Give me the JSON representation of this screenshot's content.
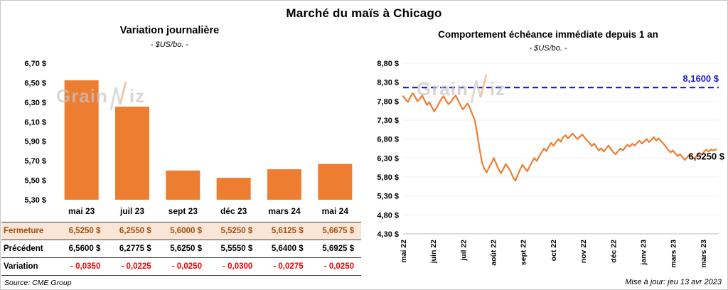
{
  "title": "Marché du maïs à Chicago",
  "left_panel": {
    "title": "Variation journalière",
    "subtitle": "- $US/bo. -",
    "source": "Source: CME Group"
  },
  "right_panel": {
    "title": "Comportement échéance immédiate depuis 1 an",
    "subtitle": "- $US/bo. -",
    "updated": "Mise à jour: jeu 13 avr 2023"
  },
  "watermark": {
    "text": "GrainWiz",
    "part1": "Grain",
    "part2": "iz"
  },
  "colors": {
    "accent_orange": "#ED7D31",
    "table_highlight_bg": "#FBE5D6",
    "table_highlight_text": "#9E4F0D",
    "negative_red": "#F00000",
    "reference_blue": "#2020CC"
  },
  "table": {
    "rows": [
      {
        "key": "fermeture",
        "label": "Fermeture",
        "values": [
          "6,5250 $",
          "6,2550 $",
          "5,6000 $",
          "5,5250 $",
          "5,6125 $",
          "5,6675 $"
        ]
      },
      {
        "key": "precedent",
        "label": "Précédent",
        "values": [
          "6,5600 $",
          "6,2775 $",
          "5,6250 $",
          "5,5550 $",
          "5,6400 $",
          "5,6925 $"
        ]
      },
      {
        "key": "variation",
        "label": "Variation",
        "values": [
          "- 0,0350",
          "- 0,0225",
          "- 0,0250",
          "- 0,0300",
          "- 0,0275",
          "- 0,0250"
        ]
      }
    ]
  },
  "chart_data": [
    {
      "type": "bar",
      "title": "Variation journalière",
      "subtitle": "- $US/bo. -",
      "categories": [
        "mai 23",
        "juil 23",
        "sept 23",
        "déc 23",
        "mars 24",
        "mai 24"
      ],
      "values": [
        6.525,
        6.255,
        5.6,
        5.525,
        5.6125,
        5.6675
      ],
      "ylim": [
        5.3,
        6.7
      ],
      "ytick_step": 0.2,
      "ytick_labels": [
        "6,70 $",
        "6,50 $",
        "6,30 $",
        "6,10 $",
        "5,90 $",
        "5,70 $",
        "5,50 $",
        "5,30 $"
      ],
      "grid": false,
      "legend": "none"
    },
    {
      "type": "line",
      "title": "Comportement échéance immédiate depuis 1 an",
      "subtitle": "- $US/bo. -",
      "x_tick_labels": [
        "mai 22",
        "juin 22",
        "juil 22",
        "août 22",
        "sept 22",
        "oct 22",
        "nov 22",
        "déc 22",
        "janv 23",
        "mars 23",
        "mars 23"
      ],
      "ylim": [
        4.3,
        8.8
      ],
      "ytick_step": 0.5,
      "ytick_labels": [
        "8,80 $",
        "8,30 $",
        "7,80 $",
        "7,30 $",
        "6,80 $",
        "6,30 $",
        "5,80 $",
        "5,30 $",
        "4,80 $",
        "4,30 $"
      ],
      "reference_line": {
        "value": 8.16,
        "label": "8,1600 $"
      },
      "last_value": 6.525,
      "last_label": "6,5250 $",
      "grid": false,
      "legend": "none",
      "values": [
        7.93,
        7.85,
        7.78,
        7.9,
        8.01,
        7.92,
        7.8,
        7.86,
        7.95,
        7.82,
        7.7,
        7.77,
        7.65,
        7.53,
        7.62,
        7.74,
        7.86,
        7.93,
        7.81,
        7.72,
        7.78,
        7.87,
        7.95,
        7.83,
        7.7,
        7.58,
        7.66,
        7.74,
        7.62,
        7.45,
        7.3,
        6.95,
        6.55,
        6.2,
        6.02,
        5.92,
        6.05,
        6.17,
        6.3,
        6.15,
        6.0,
        5.9,
        6.02,
        6.14,
        6.05,
        5.95,
        5.8,
        5.7,
        5.85,
        6.0,
        6.12,
        6.03,
        5.95,
        6.08,
        6.2,
        6.3,
        6.22,
        6.35,
        6.45,
        6.55,
        6.48,
        6.6,
        6.7,
        6.62,
        6.72,
        6.8,
        6.73,
        6.85,
        6.9,
        6.82,
        6.88,
        6.95,
        6.87,
        6.8,
        6.86,
        6.92,
        6.84,
        6.77,
        6.7,
        6.62,
        6.68,
        6.58,
        6.5,
        6.56,
        6.47,
        6.55,
        6.63,
        6.54,
        6.45,
        6.4,
        6.48,
        6.55,
        6.5,
        6.58,
        6.65,
        6.6,
        6.68,
        6.63,
        6.7,
        6.76,
        6.68,
        6.74,
        6.8,
        6.72,
        6.78,
        6.85,
        6.76,
        6.82,
        6.75,
        6.68,
        6.6,
        6.52,
        6.45,
        6.5,
        6.42,
        6.35,
        6.4,
        6.32,
        6.25,
        6.32,
        6.4,
        6.34,
        6.28,
        6.36,
        6.44,
        6.38,
        6.46,
        6.52,
        6.47,
        6.53,
        6.5,
        6.525
      ]
    }
  ]
}
